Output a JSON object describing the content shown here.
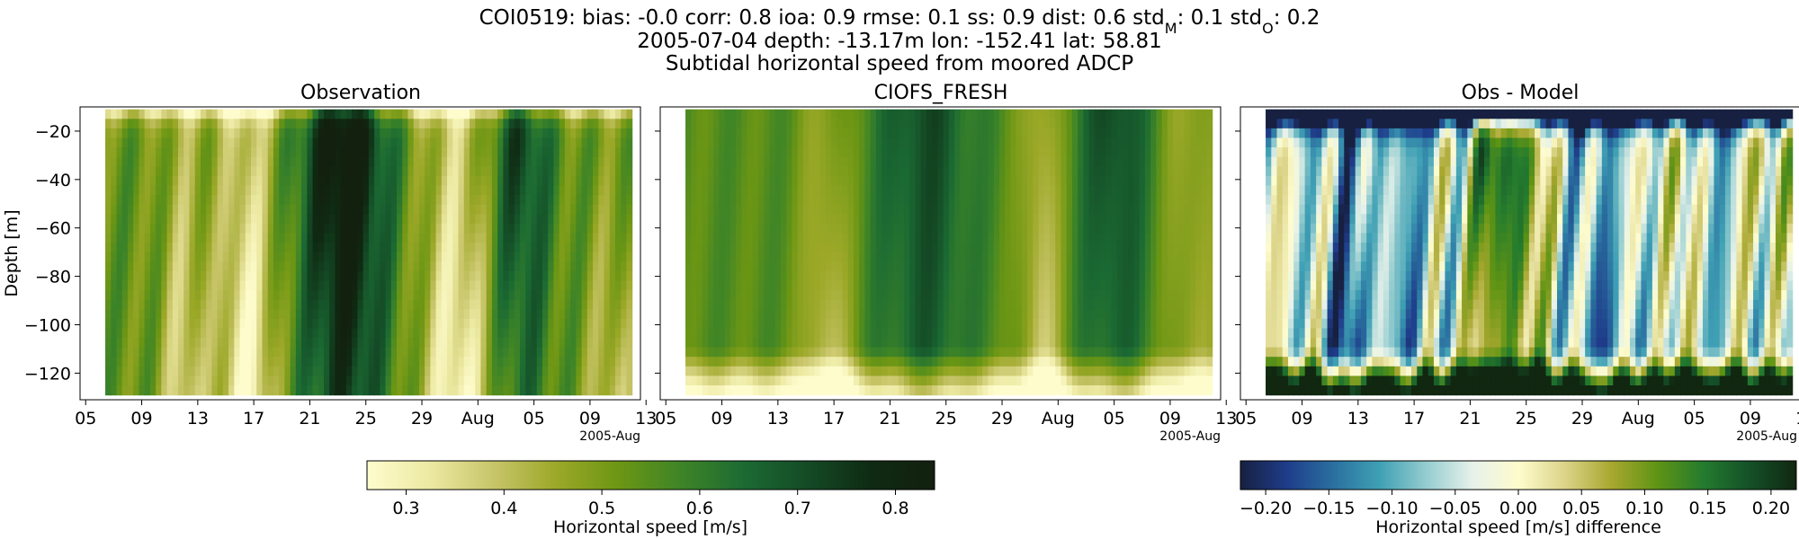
{
  "header": {
    "line1_parts": [
      {
        "t": "COI0519: bias: -0.0  corr: 0.8  ioa: 0.9  rmse: 0.1  ss: 0.9  dist: 0.6  std"
      },
      {
        "t": "M",
        "sub": true
      },
      {
        "t": ": 0.1  std"
      },
      {
        "t": "O",
        "sub": true
      },
      {
        "t": ": 0.2"
      }
    ],
    "line2": "2005-07-04 depth: -13.17m lon: -152.41 lat: 58.81",
    "line3": "Subtidal horizontal speed from moored ADCP"
  },
  "chart_data": [
    {
      "type": "heatmap",
      "title": "Observation",
      "xlabel": "",
      "ylabel": "Depth [m]",
      "x_ticks": [
        "05",
        "09",
        "13",
        "17",
        "21",
        "25",
        "29",
        "Aug",
        "05",
        "09",
        "13"
      ],
      "x_offset_label": "2005-Aug",
      "x_range_days_from_jul5": [
        -0.4,
        39.6
      ],
      "data_x_range": [
        1.4,
        39.0
      ],
      "y_ticks": [
        -20,
        -40,
        -60,
        -80,
        -100,
        -120
      ],
      "ylim": [
        -131,
        -10
      ],
      "data_y_range": [
        -129,
        -11
      ],
      "colormap": "speed",
      "vmin": 0.26,
      "vmax": 0.84
    },
    {
      "type": "heatmap",
      "title": "CIOFS_FRESH",
      "xlabel": "",
      "ylabel": "",
      "x_ticks": [
        "05",
        "09",
        "13",
        "17",
        "21",
        "25",
        "29",
        "Aug",
        "05",
        "09",
        "13"
      ],
      "x_offset_label": "2005-Aug",
      "x_range_days_from_jul5": [
        -0.4,
        39.6
      ],
      "data_x_range": [
        1.4,
        39.0
      ],
      "y_ticks": [
        -20,
        -40,
        -60,
        -80,
        -100,
        -120
      ],
      "ylim": [
        -131,
        -10
      ],
      "data_y_range": [
        -129,
        -11
      ],
      "colormap": "speed",
      "vmin": 0.26,
      "vmax": 0.84
    },
    {
      "type": "heatmap",
      "title": "Obs - Model",
      "xlabel": "",
      "ylabel": "",
      "x_ticks": [
        "05",
        "09",
        "13",
        "17",
        "21",
        "25",
        "29",
        "Aug",
        "05",
        "09",
        "13"
      ],
      "x_offset_label": "2005-Aug",
      "x_range_days_from_jul5": [
        -0.4,
        39.6
      ],
      "data_x_range": [
        1.4,
        39.0
      ],
      "y_ticks": [
        -20,
        -40,
        -60,
        -80,
        -100,
        -120
      ],
      "ylim": [
        -131,
        -10
      ],
      "data_y_range": [
        -129,
        -11
      ],
      "colormap": "diverging",
      "vmin": -0.22,
      "vmax": 0.22
    }
  ],
  "colorbars": [
    {
      "label": "Horizontal speed [m/s]",
      "range": [
        0.26,
        0.84
      ],
      "ticks": [
        0.3,
        0.4,
        0.5,
        0.6,
        0.7,
        0.8
      ],
      "tick_labels": [
        "0.3",
        "0.4",
        "0.5",
        "0.6",
        "0.7",
        "0.8"
      ],
      "colormap": "speed"
    },
    {
      "label": "Horizontal speed [m/s] difference",
      "range": [
        -0.22,
        0.22
      ],
      "ticks": [
        -0.2,
        -0.15,
        -0.1,
        -0.05,
        0.0,
        0.05,
        0.1,
        0.15,
        0.2
      ],
      "tick_labels": [
        "−0.20",
        "−0.15",
        "−0.10",
        "−0.05",
        "0.00",
        "0.05",
        "0.10",
        "0.15",
        "0.20"
      ],
      "colormap": "diverging"
    }
  ],
  "colors": {
    "speed": [
      "#fefccd",
      "#ece9a2",
      "#c8c56a",
      "#9ca828",
      "#6c9614",
      "#3d8427",
      "#1b6a33",
      "#144a25",
      "#0f2a12",
      "#13200f"
    ],
    "diverging": [
      "#172040",
      "#1f3c8a",
      "#2a6fa0",
      "#3fa0b4",
      "#94cccf",
      "#e6f1ea",
      "#fefccd",
      "#dcd489",
      "#a8a830",
      "#5f9414",
      "#247b2e",
      "#145028",
      "#112710"
    ]
  }
}
